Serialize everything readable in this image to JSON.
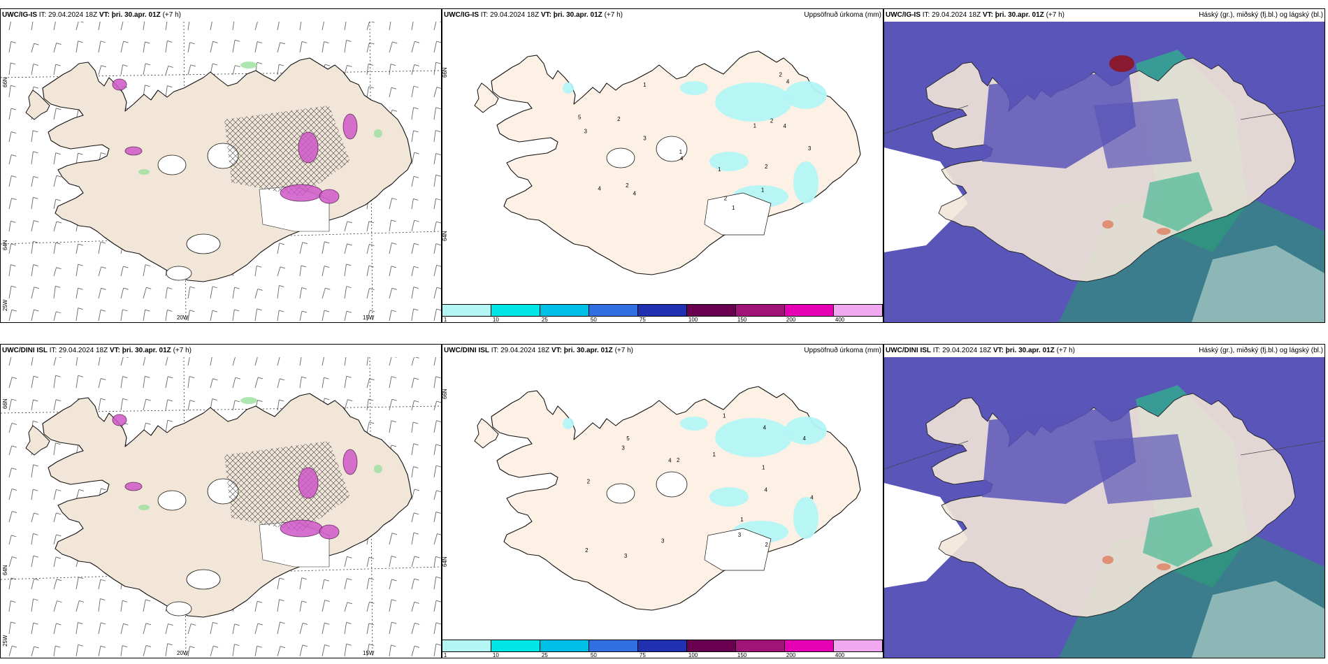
{
  "rows": [
    {
      "model": "UWC/IG-IS",
      "it_label": "IT:",
      "it_value": "29.04.2024 18Z",
      "vt_label": "VT:",
      "vt_value": "þri. 30.apr. 01Z",
      "lead": "(+7 h)"
    },
    {
      "model": "UWC/DINI ISL",
      "it_label": "IT:",
      "it_value": "29.04.2024 18Z",
      "vt_label": "VT:",
      "vt_value": "þri. 30.apr. 01Z",
      "lead": "(+7 h)"
    }
  ],
  "panel_right_titles": {
    "precip": "Uppsöfnuð úrkoma (mm)",
    "cloud": "Háský (gr.), miðský (fj.bl.) og lágský (bl.)"
  },
  "axis_labels": {
    "lat_65": "65N",
    "lat_64": "64N",
    "lat_66": "66N",
    "lon_25": "25W",
    "lon_20": "20W",
    "lon_15": "15W"
  },
  "colorbar": {
    "ticks": [
      "1",
      "10",
      "25",
      "50",
      "75",
      "100",
      "150",
      "200",
      "400"
    ],
    "colors": [
      "#b3f5f5",
      "#00e6e6",
      "#00bfe6",
      "#2f6fe0",
      "#2030b0",
      "#6a0050",
      "#a0147a",
      "#e600b4",
      "#f0a8f0"
    ]
  },
  "precip_top_labels": [
    "1",
    "1",
    "2",
    "2",
    "2",
    "2",
    "3",
    "3",
    "4",
    "4",
    "4",
    "5",
    "1",
    "1",
    "1",
    "2",
    "3",
    "4",
    "2",
    "4",
    "1"
  ],
  "precip_bottom_labels": [
    "1",
    "1",
    "2",
    "2",
    "3",
    "3",
    "3",
    "4",
    "4",
    "4",
    "1",
    "1",
    "2",
    "2",
    "3",
    "4",
    "5",
    "4"
  ],
  "colors": {
    "land": "#f2e6d9",
    "sea": "#ffffff",
    "light_precip": "#b3f5f5",
    "high_cloud": "#5a55b8",
    "mid_cloud": "#2fb38a",
    "low_cloud": "#2e8f7a",
    "snow": "#d058c8"
  }
}
